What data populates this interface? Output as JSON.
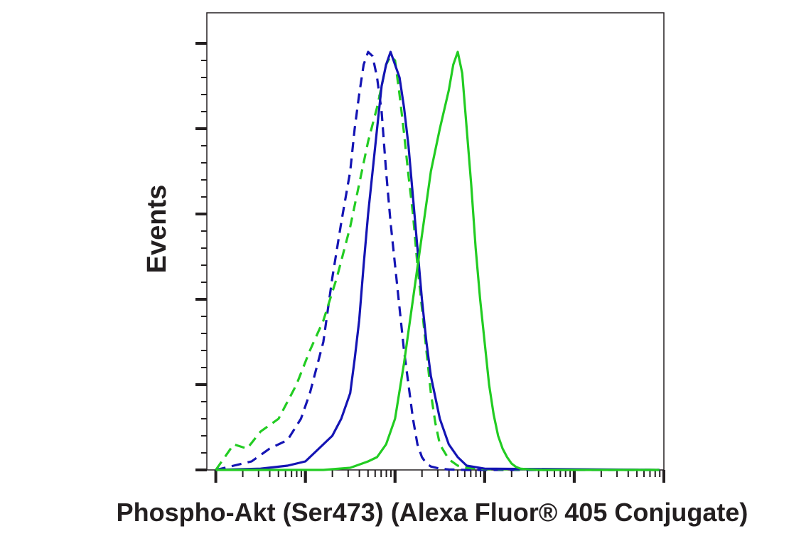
{
  "chart_data": {
    "type": "line",
    "xlabel": "Phospho-Akt (Ser473) (Alexa Fluor® 405 Conjugate)",
    "ylabel": "Events",
    "x_scale": "log",
    "xlim": [
      -0.1,
      5
    ],
    "ylim": [
      0,
      100
    ],
    "grid": false,
    "legend": "none",
    "colors": {
      "blue": "#1414b4",
      "green": "#22cc22",
      "axis": "#231f20"
    },
    "series": [
      {
        "color": "#1414b4",
        "dash": true,
        "x": [
          0.0,
          0.2,
          0.4,
          0.6,
          0.8,
          0.95,
          1.05,
          1.2,
          1.3,
          1.4,
          1.5,
          1.55,
          1.6,
          1.65,
          1.7,
          1.75,
          1.8,
          1.85,
          1.9,
          1.95,
          2.0,
          2.05,
          2.1,
          2.15,
          2.2,
          2.25,
          2.3,
          2.35,
          2.4,
          2.5,
          2.6,
          2.8,
          4.95
        ],
        "y": [
          0,
          1,
          2,
          5,
          7,
          12,
          18,
          30,
          45,
          58,
          70,
          80,
          88,
          95,
          98,
          97,
          92,
          84,
          70,
          58,
          48,
          38,
          28,
          20,
          12,
          6,
          3,
          1.5,
          0.8,
          0.3,
          0.1,
          0,
          0
        ]
      },
      {
        "color": "#22cc22",
        "dash": true,
        "x": [
          0.0,
          0.1,
          0.2,
          0.35,
          0.5,
          0.7,
          0.9,
          1.05,
          1.2,
          1.35,
          1.5,
          1.6,
          1.7,
          1.8,
          1.85,
          1.9,
          1.95,
          2.0,
          2.05,
          2.1,
          2.15,
          2.2,
          2.25,
          2.3,
          2.35,
          2.4,
          2.45,
          2.5,
          2.6,
          2.7,
          2.8,
          3.0,
          4.95
        ],
        "y": [
          0,
          3,
          6,
          5,
          9,
          12,
          20,
          28,
          35,
          45,
          57,
          67,
          77,
          85,
          90,
          95,
          97,
          96,
          88,
          79,
          69,
          60,
          48,
          38,
          28,
          18,
          11,
          6,
          2.5,
          1,
          0.5,
          0.2,
          0
        ]
      },
      {
        "color": "#1414b4",
        "dash": false,
        "x": [
          0.0,
          0.5,
          0.8,
          1.0,
          1.1,
          1.2,
          1.3,
          1.4,
          1.5,
          1.55,
          1.6,
          1.65,
          1.7,
          1.75,
          1.8,
          1.85,
          1.9,
          1.95,
          2.0,
          2.05,
          2.1,
          2.15,
          2.2,
          2.25,
          2.3,
          2.35,
          2.4,
          2.5,
          2.6,
          2.7,
          2.8,
          3.0,
          4.95
        ],
        "y": [
          0,
          0.3,
          1,
          2,
          4,
          6,
          8,
          12,
          18,
          26,
          35,
          48,
          60,
          70,
          80,
          90,
          95,
          98,
          95,
          92,
          85,
          76,
          64,
          52,
          40,
          30,
          22,
          12,
          6,
          3,
          1,
          0.3,
          0
        ]
      },
      {
        "color": "#22cc22",
        "dash": false,
        "x": [
          0.0,
          1.2,
          1.5,
          1.7,
          1.8,
          1.9,
          2.0,
          2.1,
          2.2,
          2.3,
          2.4,
          2.5,
          2.6,
          2.65,
          2.7,
          2.75,
          2.8,
          2.85,
          2.9,
          2.95,
          3.0,
          3.05,
          3.1,
          3.15,
          3.2,
          3.25,
          3.3,
          3.35,
          3.4,
          3.45,
          3.5,
          3.6,
          3.7,
          3.8,
          4.0,
          4.95
        ],
        "y": [
          0,
          0,
          0.5,
          2,
          3,
          6,
          12,
          25,
          40,
          55,
          70,
          80,
          89,
          95,
          98,
          93,
          80,
          67,
          52,
          40,
          30,
          20,
          13,
          8,
          5,
          3,
          1.5,
          0.7,
          0.3,
          0.2,
          0.1,
          0,
          0,
          0,
          0,
          0
        ]
      }
    ]
  }
}
